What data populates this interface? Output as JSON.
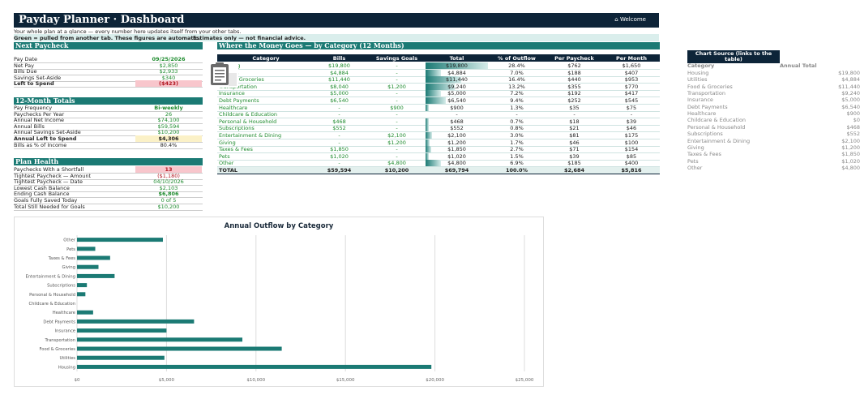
{
  "header": {
    "title": "Payday Planner  ·  Dashboard",
    "welcome": "⌂ Welcome"
  },
  "intro": {
    "line1": "Your whole plan at a glance — every number here updates itself from your other tabs.",
    "line2_a": "Green = pulled from another tab.  These figures are automatic.",
    "line2_b": "Estimates only — not financial advice."
  },
  "next_paycheck": {
    "title": "Next Paycheck",
    "rows": [
      {
        "label": "Pay Date",
        "value": "09/25/2026",
        "style": "green-bold"
      },
      {
        "label": "Net Pay",
        "value": "$2,850",
        "style": "green"
      },
      {
        "label": "Bills Due",
        "value": "$2,933",
        "style": "green"
      },
      {
        "label": "Savings Set-Aside",
        "value": "$340",
        "style": "green"
      },
      {
        "label": "Left to Spend",
        "value": "($423)",
        "style": "red"
      }
    ]
  },
  "totals": {
    "title": "12-Month Totals",
    "rows": [
      {
        "label": "Pay Frequency",
        "value": "Bi-weekly",
        "style": "green-bold"
      },
      {
        "label": "Paychecks Per Year",
        "value": "26",
        "style": "green"
      },
      {
        "label": "Annual Net Income",
        "value": "$74,100",
        "style": "green"
      },
      {
        "label": "Annual Bills",
        "value": "$59,594",
        "style": "green"
      },
      {
        "label": "Annual Savings Set-Aside",
        "value": "$10,200",
        "style": "green"
      },
      {
        "label": "Annual Left to Spend",
        "value": "$4,306",
        "style": "yellow"
      },
      {
        "label": "Bills as % of Income",
        "value": "80.4%",
        "style": "plain"
      }
    ]
  },
  "health": {
    "title": "Plan Health",
    "rows": [
      {
        "label": "Paychecks With a Shortfall",
        "value": "13",
        "style": "red"
      },
      {
        "label": "Tightest Paycheck — Amount",
        "value": "($1,180)",
        "style": "redtext"
      },
      {
        "label": "Tightest Paycheck — Date",
        "value": "04/10/2026",
        "style": "green"
      },
      {
        "label": "Lowest Cash Balance",
        "value": "$2,103",
        "style": "green"
      },
      {
        "label": "Ending Cash Balance",
        "value": "$6,806",
        "style": "green-bold"
      },
      {
        "label": "Goals Fully Saved Today",
        "value": "0 of 5",
        "style": "green"
      },
      {
        "label": "Total Still Needed for Goals",
        "value": "$10,200",
        "style": "green"
      }
    ]
  },
  "category": {
    "title": "Where the Money Goes  —  by Category (12 Months)",
    "headers": [
      "Category",
      "Bills",
      "Savings Goals",
      "Total",
      "% of Outflow",
      "Per Paycheck",
      "Per Month"
    ],
    "rows": [
      {
        "name": "Housing",
        "bills": "$19,800",
        "savings": "-",
        "total": "$19,800",
        "pct": "28.4%",
        "pp": "$762",
        "pm": "$1,650"
      },
      {
        "name": "Utilities",
        "bills": "$4,884",
        "savings": "-",
        "total": "$4,884",
        "pct": "7.0%",
        "pp": "$188",
        "pm": "$407"
      },
      {
        "name": "Food & Groceries",
        "bills": "$11,440",
        "savings": "-",
        "total": "$11,440",
        "pct": "16.4%",
        "pp": "$440",
        "pm": "$953"
      },
      {
        "name": "Transportation",
        "bills": "$8,040",
        "savings": "$1,200",
        "total": "$9,240",
        "pct": "13.2%",
        "pp": "$355",
        "pm": "$770"
      },
      {
        "name": "Insurance",
        "bills": "$5,000",
        "savings": "-",
        "total": "$5,000",
        "pct": "7.2%",
        "pp": "$192",
        "pm": "$417"
      },
      {
        "name": "Debt Payments",
        "bills": "$6,540",
        "savings": "-",
        "total": "$6,540",
        "pct": "9.4%",
        "pp": "$252",
        "pm": "$545"
      },
      {
        "name": "Healthcare",
        "bills": "-",
        "savings": "$900",
        "total": "$900",
        "pct": "1.3%",
        "pp": "$35",
        "pm": "$75"
      },
      {
        "name": "Childcare & Education",
        "bills": "-",
        "savings": "-",
        "total": "-",
        "pct": "-",
        "pp": "-",
        "pm": "-"
      },
      {
        "name": "Personal & Household",
        "bills": "$468",
        "savings": "-",
        "total": "$468",
        "pct": "0.7%",
        "pp": "$18",
        "pm": "$39"
      },
      {
        "name": "Subscriptions",
        "bills": "$552",
        "savings": "-",
        "total": "$552",
        "pct": "0.8%",
        "pp": "$21",
        "pm": "$46"
      },
      {
        "name": "Entertainment & Dining",
        "bills": "-",
        "savings": "$2,100",
        "total": "$2,100",
        "pct": "3.0%",
        "pp": "$81",
        "pm": "$175"
      },
      {
        "name": "Giving",
        "bills": "-",
        "savings": "$1,200",
        "total": "$1,200",
        "pct": "1.7%",
        "pp": "$46",
        "pm": "$100"
      },
      {
        "name": "Taxes & Fees",
        "bills": "$1,850",
        "savings": "-",
        "total": "$1,850",
        "pct": "2.7%",
        "pp": "$71",
        "pm": "$154"
      },
      {
        "name": "Pets",
        "bills": "$1,020",
        "savings": "-",
        "total": "$1,020",
        "pct": "1.5%",
        "pp": "$39",
        "pm": "$85"
      },
      {
        "name": "Other",
        "bills": "-",
        "savings": "$4,800",
        "total": "$4,800",
        "pct": "6.9%",
        "pp": "$185",
        "pm": "$400"
      }
    ],
    "total": {
      "name": "TOTAL",
      "bills": "$59,594",
      "savings": "$10,200",
      "total": "$69,794",
      "pct": "100.0%",
      "pp": "$2,684",
      "pm": "$5,816"
    }
  },
  "side": {
    "title": "Chart Source (links to the table)",
    "col1": "Category",
    "col2": "Annual Total",
    "rows": [
      [
        "Housing",
        "$19,800"
      ],
      [
        "Utilities",
        "$4,884"
      ],
      [
        "Food & Groceries",
        "$11,440"
      ],
      [
        "Transportation",
        "$9,240"
      ],
      [
        "Insurance",
        "$5,000"
      ],
      [
        "Debt Payments",
        "$6,540"
      ],
      [
        "Healthcare",
        "$900"
      ],
      [
        "Childcare & Education",
        "$0"
      ],
      [
        "Personal & Household",
        "$468"
      ],
      [
        "Subscriptions",
        "$552"
      ],
      [
        "Entertainment & Dining",
        "$2,100"
      ],
      [
        "Giving",
        "$1,200"
      ],
      [
        "Taxes & Fees",
        "$1,850"
      ],
      [
        "Pets",
        "$1,020"
      ],
      [
        "Other",
        "$4,800"
      ]
    ]
  },
  "chart_data": {
    "type": "bar",
    "orientation": "horizontal",
    "title": "Annual Outflow by Category",
    "categories": [
      "Housing",
      "Utilities",
      "Food & Groceries",
      "Transportation",
      "Insurance",
      "Debt Payments",
      "Healthcare",
      "Childcare & Education",
      "Personal & Household",
      "Subscriptions",
      "Entertainment & Dining",
      "Giving",
      "Taxes & Fees",
      "Pets",
      "Other"
    ],
    "values": [
      19800,
      4884,
      11440,
      9240,
      5000,
      6540,
      900,
      0,
      468,
      552,
      2100,
      1200,
      1850,
      1020,
      4800
    ],
    "xlim": [
      0,
      25000
    ],
    "xticks": [
      "$0",
      "$5,000",
      "$10,000",
      "$15,000",
      "$20,000",
      "$25,000"
    ],
    "grid": true,
    "bar_color": "#1b7a74"
  }
}
